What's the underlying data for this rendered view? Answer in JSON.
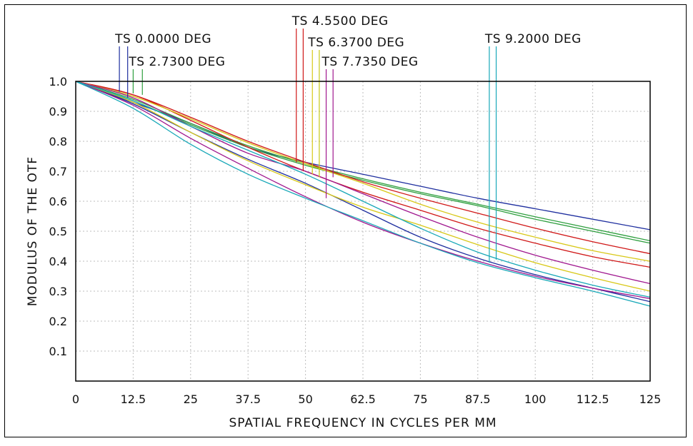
{
  "chart_data": {
    "type": "line",
    "title": "",
    "xlabel": "SPATIAL FREQUENCY IN CYCLES PER MM",
    "ylabel": "MODULUS OF THE OTF",
    "xlim": [
      0,
      125
    ],
    "ylim": [
      0,
      1.0
    ],
    "x_ticks": [
      0,
      12.5,
      25,
      37.5,
      50,
      62.5,
      75,
      87.5,
      100,
      112.5,
      125
    ],
    "x_tick_labels": [
      "0",
      "12.5",
      "25",
      "37.5",
      "50",
      "62.5",
      "75",
      "87.5",
      "100",
      "112.5",
      "125"
    ],
    "y_ticks": [
      0.1,
      0.2,
      0.3,
      0.4,
      0.5,
      0.6,
      0.7,
      0.8,
      0.9,
      1.0
    ],
    "y_tick_labels": [
      "0.1",
      "0.2",
      "0.3",
      "0.4",
      "0.5",
      "0.6",
      "0.7",
      "0.8",
      "0.9",
      "1.0"
    ],
    "grid": true,
    "legend_labels": [
      {
        "text": "TS  0.0000  DEG",
        "colors": [
          "#1f2f9f",
          "#1f2f9f"
        ],
        "marker_x": [
          9.5,
          11.3
        ],
        "marker_y": [
          0.965,
          0.945
        ]
      },
      {
        "text": "TS  2.7300  DEG",
        "colors": [
          "#2f9f3f",
          "#2f9f3f"
        ],
        "marker_x": [
          12.5,
          14.5
        ],
        "marker_y": [
          0.96,
          0.955
        ]
      },
      {
        "text": "TS  4.5500  DEG",
        "colors": [
          "#d01818",
          "#d01818"
        ],
        "marker_x": [
          48.0,
          49.5
        ],
        "marker_y": [
          0.73,
          0.7
        ]
      },
      {
        "text": "TS  6.3700  DEG",
        "colors": [
          "#d8c818",
          "#c8c818"
        ],
        "marker_x": [
          51.5,
          53.0
        ],
        "marker_y": [
          0.69,
          0.68
        ]
      },
      {
        "text": "TS  7.7350  DEG",
        "colors": [
          "#a0188f",
          "#a0188f"
        ],
        "marker_x": [
          54.5,
          56.0
        ],
        "marker_y": [
          0.61,
          0.68
        ]
      },
      {
        "text": "TS  9.2000  DEG",
        "colors": [
          "#18a8b8",
          "#18a8b8"
        ],
        "marker_x": [
          90.0,
          91.5
        ],
        "marker_y": [
          0.395,
          0.405
        ]
      }
    ],
    "x": [
      0,
      12.5,
      25,
      37.5,
      50,
      62.5,
      75,
      87.5,
      100,
      112.5,
      125
    ],
    "series": [
      {
        "color": "#1f2f9f",
        "values": [
          1.0,
          0.93,
          0.86,
          0.78,
          0.73,
          0.69,
          0.65,
          0.61,
          0.575,
          0.54,
          0.505
        ]
      },
      {
        "color": "#1f2f9f",
        "values": [
          1.0,
          0.925,
          0.83,
          0.74,
          0.66,
          0.57,
          0.48,
          0.41,
          0.355,
          0.31,
          0.265
        ]
      },
      {
        "color": "#2f9f3f",
        "values": [
          1.0,
          0.935,
          0.855,
          0.78,
          0.72,
          0.67,
          0.625,
          0.585,
          0.54,
          0.5,
          0.46
        ]
      },
      {
        "color": "#2f9f3f",
        "values": [
          1.0,
          0.94,
          0.86,
          0.785,
          0.725,
          0.675,
          0.63,
          0.59,
          0.548,
          0.508,
          0.468
        ]
      },
      {
        "color": "#d01818",
        "values": [
          1.0,
          0.955,
          0.88,
          0.8,
          0.73,
          0.665,
          0.61,
          0.56,
          0.51,
          0.465,
          0.425
        ]
      },
      {
        "color": "#d01818",
        "values": [
          1.0,
          0.955,
          0.87,
          0.78,
          0.7,
          0.63,
          0.57,
          0.51,
          0.46,
          0.415,
          0.38
        ]
      },
      {
        "color": "#d8c818",
        "values": [
          1.0,
          0.95,
          0.875,
          0.795,
          0.725,
          0.66,
          0.59,
          0.53,
          0.48,
          0.435,
          0.4
        ]
      },
      {
        "color": "#d8c818",
        "values": [
          1.0,
          0.93,
          0.83,
          0.735,
          0.655,
          0.58,
          0.52,
          0.455,
          0.395,
          0.345,
          0.3
        ]
      },
      {
        "color": "#a0188f",
        "values": [
          1.0,
          0.945,
          0.85,
          0.76,
          0.7,
          0.625,
          0.55,
          0.48,
          0.42,
          0.37,
          0.325
        ]
      },
      {
        "color": "#a0188f",
        "values": [
          1.0,
          0.92,
          0.81,
          0.71,
          0.615,
          0.53,
          0.46,
          0.4,
          0.35,
          0.31,
          0.275
        ]
      },
      {
        "color": "#18a8b8",
        "values": [
          1.0,
          0.935,
          0.85,
          0.77,
          0.69,
          0.6,
          0.51,
          0.43,
          0.37,
          0.32,
          0.28
        ]
      },
      {
        "color": "#18a8b8",
        "values": [
          1.0,
          0.91,
          0.79,
          0.69,
          0.61,
          0.535,
          0.46,
          0.395,
          0.345,
          0.3,
          0.25
        ]
      }
    ]
  }
}
